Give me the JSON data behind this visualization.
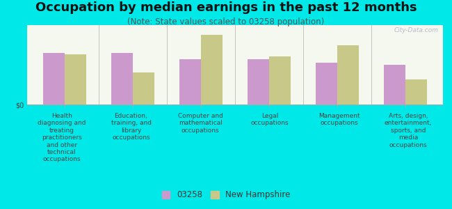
{
  "title": "Occupation by median earnings in the past 12 months",
  "subtitle": "(Note: State values scaled to 03258 population)",
  "categories": [
    "Health\ndiagnosing and\ntreating\npractitioners\nand other\ntechnical\noccupations",
    "Education,\ntraining, and\nlibrary\noccupations",
    "Computer and\nmathematical\noccupations",
    "Legal\noccupations",
    "Management\noccupations",
    "Arts, design,\nentertainment,\nsports, and\nmedia\noccupations"
  ],
  "values_03258": [
    0.78,
    0.78,
    0.68,
    0.68,
    0.63,
    0.6
  ],
  "values_nh": [
    0.76,
    0.48,
    1.05,
    0.73,
    0.9,
    0.38
  ],
  "color_03258": "#cc99cc",
  "color_nh": "#c8c888",
  "bg_color": "#00e8e8",
  "plot_bg_top": "#e8f0d8",
  "plot_bg_bottom": "#f5f8ee",
  "bar_width": 0.32,
  "legend_labels": [
    "03258",
    "New Hampshire"
  ],
  "watermark": "City-Data.com",
  "ylabel": "$0",
  "title_fontsize": 13,
  "subtitle_fontsize": 8.5,
  "tick_fontsize": 6.5,
  "legend_fontsize": 8.5
}
